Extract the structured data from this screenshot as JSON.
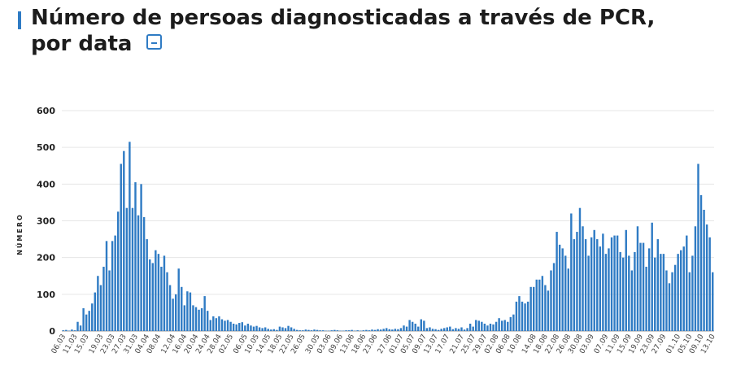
{
  "header": {
    "title_line1": "Número de persoas diagnosticadas a través de PCR,",
    "title_line2": "por data",
    "collapse_label": "–"
  },
  "colors": {
    "accent": "#2f7bc4",
    "bar": "#2f7bc4",
    "grid": "#e6e6e6"
  },
  "chart_data": {
    "type": "bar",
    "ylabel": "NÚMERO",
    "ylim": [
      0,
      600
    ],
    "yticks": [
      0,
      100,
      200,
      300,
      400,
      500,
      600
    ],
    "grid": true,
    "xtick_labels": [
      "06.03",
      "11.03",
      "15.03",
      "19.03",
      "23.03",
      "27.03",
      "31.03",
      "04.04",
      "08.04",
      "12.04",
      "16.04",
      "20.04",
      "24.04",
      "28.04",
      "02.05",
      "06.05",
      "10.05",
      "14.05",
      "18.05",
      "22.05",
      "26.05",
      "30.05",
      "03.06",
      "09.06",
      "13.06",
      "18.06",
      "23.06",
      "27.06",
      "01.07",
      "05.07",
      "09.07",
      "13.07",
      "17.07",
      "21.07",
      "25.07",
      "29.07",
      "02.08",
      "06.08",
      "10.08",
      "14.08",
      "18.08",
      "22.08",
      "26.08",
      "30.08",
      "03.09",
      "07.09",
      "11.09",
      "15.09",
      "19.09",
      "23.09",
      "27.09",
      "01.10",
      "05.10",
      "09.10",
      "13.10"
    ],
    "values": [
      2,
      3,
      1,
      4,
      2,
      25,
      15,
      62,
      45,
      55,
      75,
      105,
      150,
      125,
      175,
      245,
      165,
      245,
      260,
      325,
      455,
      490,
      335,
      515,
      335,
      405,
      315,
      400,
      310,
      250,
      195,
      185,
      220,
      210,
      175,
      205,
      160,
      125,
      88,
      100,
      170,
      120,
      70,
      108,
      105,
      70,
      65,
      58,
      62,
      95,
      55,
      30,
      40,
      35,
      40,
      32,
      28,
      30,
      25,
      20,
      18,
      22,
      24,
      15,
      20,
      15,
      12,
      14,
      10,
      8,
      10,
      6,
      4,
      5,
      3,
      12,
      10,
      8,
      14,
      10,
      6,
      3,
      2,
      2,
      4,
      3,
      2,
      4,
      3,
      2,
      2,
      1,
      1,
      2,
      3,
      2,
      1,
      1,
      2,
      2,
      3,
      1,
      2,
      1,
      2,
      3,
      2,
      4,
      3,
      5,
      4,
      6,
      8,
      5,
      4,
      6,
      5,
      8,
      15,
      12,
      30,
      25,
      20,
      12,
      32,
      28,
      8,
      10,
      6,
      5,
      3,
      6,
      8,
      10,
      12,
      5,
      8,
      6,
      10,
      4,
      8,
      20,
      12,
      30,
      28,
      25,
      20,
      15,
      20,
      18,
      25,
      35,
      28,
      30,
      25,
      38,
      45,
      80,
      95,
      80,
      75,
      80,
      120,
      120,
      140,
      140,
      150,
      125,
      110,
      165,
      185,
      270,
      235,
      225,
      205,
      170,
      320,
      250,
      270,
      335,
      285,
      250,
      205,
      255,
      275,
      250,
      230,
      265,
      210,
      225,
      255,
      260,
      260,
      215,
      200,
      275,
      205,
      165,
      215,
      285,
      240,
      240,
      175,
      225,
      295,
      200,
      250,
      210,
      210,
      165,
      130,
      160,
      180,
      210,
      220,
      230,
      260,
      160,
      205,
      285,
      455,
      370,
      330,
      290,
      255,
      160
    ]
  }
}
